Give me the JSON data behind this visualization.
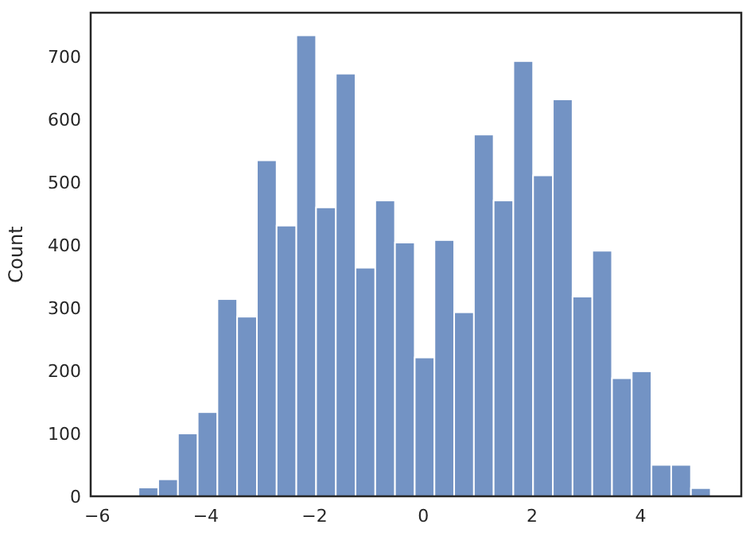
{
  "chart_data": {
    "type": "histogram",
    "ylabel": "Count",
    "color": "#7393c4",
    "bins": [
      -5.24,
      -4.877,
      -4.514,
      -4.151,
      -3.788,
      -3.425,
      -3.062,
      -2.699,
      -2.336,
      -1.973,
      -1.61,
      -1.247,
      -0.884,
      -0.521,
      -0.158,
      0.205,
      0.568,
      0.931,
      1.294,
      1.657,
      2.02,
      2.383,
      2.746,
      3.109,
      3.472,
      3.835,
      4.198,
      4.561,
      4.924,
      5.287
    ],
    "values": [
      14,
      27,
      100,
      134,
      314,
      286,
      535,
      431,
      734,
      460,
      673,
      364,
      471,
      404,
      221,
      408,
      293,
      576,
      471,
      693,
      511,
      632,
      318,
      391,
      188,
      199,
      50,
      50,
      13
    ],
    "xlim": [
      -6.12,
      5.85
    ],
    "ylim": [
      0,
      770
    ],
    "xticks": [
      {
        "value": -6,
        "label": "−6"
      },
      {
        "value": -4,
        "label": "−4"
      },
      {
        "value": -2,
        "label": "−2"
      },
      0,
      2,
      4
    ],
    "yticks": [
      0,
      100,
      200,
      300,
      400,
      500,
      600,
      700
    ],
    "grid": false
  }
}
